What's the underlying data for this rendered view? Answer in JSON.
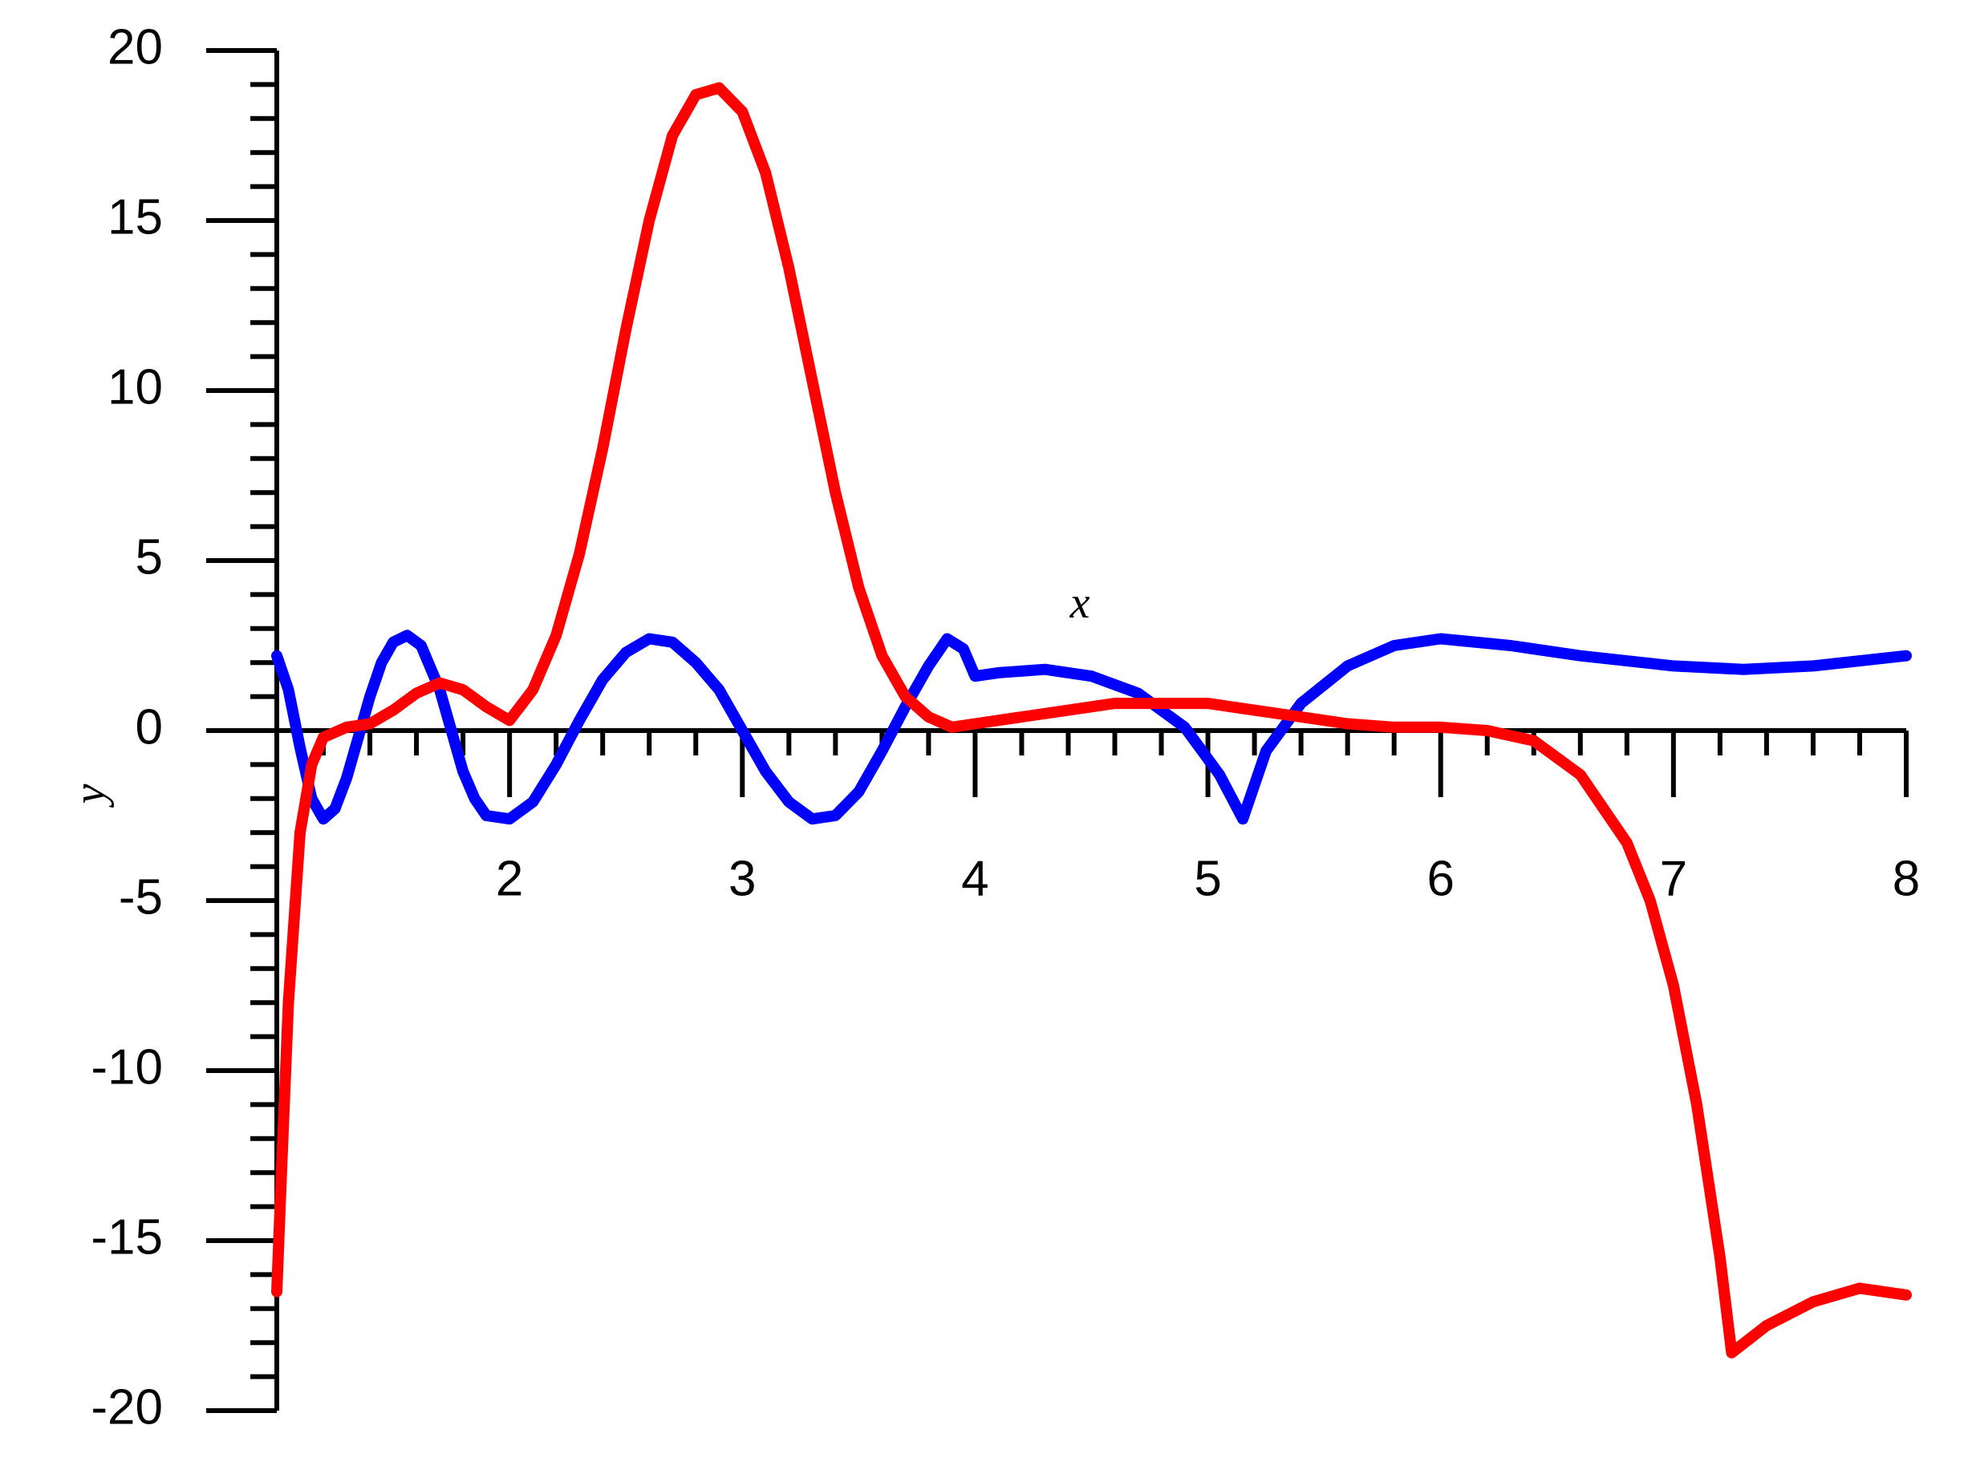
{
  "chart_data": {
    "type": "line",
    "x_label": "x",
    "y_label": "y",
    "xlim": [
      1,
      8
    ],
    "ylim": [
      -20,
      20
    ],
    "xticks": [
      2,
      3,
      4,
      5,
      6,
      7,
      8
    ],
    "yticks": [
      -20,
      -15,
      -10,
      -5,
      0,
      5,
      10,
      15,
      20
    ],
    "series": [
      {
        "color": "#0000ff",
        "x": [
          1.0,
          1.05,
          1.1,
          1.15,
          1.2,
          1.25,
          1.3,
          1.35,
          1.4,
          1.45,
          1.5,
          1.56,
          1.62,
          1.7,
          1.75,
          1.8,
          1.85,
          1.9,
          2.0,
          2.1,
          2.2,
          2.3,
          2.4,
          2.5,
          2.6,
          2.7,
          2.8,
          2.9,
          3.0,
          3.1,
          3.2,
          3.3,
          3.4,
          3.5,
          3.6,
          3.7,
          3.8,
          3.88,
          3.95,
          4.0,
          4.1,
          4.3,
          4.5,
          4.7,
          4.9,
          5.05,
          5.15,
          5.25,
          5.4,
          5.6,
          5.8,
          6.0,
          6.3,
          6.6,
          7.0,
          7.3,
          7.6,
          8.0
        ],
        "values": [
          2.2,
          1.2,
          -0.5,
          -2.0,
          -2.6,
          -2.3,
          -1.4,
          -0.2,
          1.0,
          2.0,
          2.6,
          2.8,
          2.5,
          1.2,
          0.0,
          -1.2,
          -2.0,
          -2.5,
          -2.6,
          -2.1,
          -1.0,
          0.3,
          1.5,
          2.3,
          2.7,
          2.6,
          2.0,
          1.2,
          0.0,
          -1.2,
          -2.1,
          -2.6,
          -2.5,
          -1.8,
          -0.6,
          0.7,
          1.9,
          2.7,
          2.4,
          1.6,
          1.7,
          1.8,
          1.6,
          1.1,
          0.1,
          -1.3,
          -2.6,
          -0.6,
          0.8,
          1.9,
          2.5,
          2.7,
          2.5,
          2.2,
          1.9,
          1.8,
          1.9,
          2.2
        ]
      },
      {
        "color": "#ff0000",
        "x": [
          1.0,
          1.02,
          1.05,
          1.08,
          1.1,
          1.15,
          1.2,
          1.3,
          1.4,
          1.5,
          1.6,
          1.7,
          1.8,
          1.9,
          2.0,
          2.1,
          2.2,
          2.3,
          2.4,
          2.5,
          2.6,
          2.7,
          2.8,
          2.9,
          3.0,
          3.1,
          3.2,
          3.3,
          3.4,
          3.5,
          3.6,
          3.7,
          3.8,
          3.9,
          4.0,
          4.2,
          4.4,
          4.6,
          4.8,
          5.0,
          5.2,
          5.4,
          5.6,
          5.8,
          6.0,
          6.2,
          6.4,
          6.6,
          6.8,
          6.9,
          7.0,
          7.1,
          7.2,
          7.25,
          7.4,
          7.6,
          7.8,
          8.0
        ],
        "values": [
          -16.5,
          -13,
          -8,
          -5,
          -3,
          -1,
          -0.2,
          0.1,
          0.2,
          0.6,
          1.1,
          1.4,
          1.2,
          0.7,
          0.3,
          1.2,
          2.8,
          5.2,
          8.3,
          11.8,
          15.0,
          17.5,
          18.7,
          18.9,
          18.2,
          16.4,
          13.6,
          10.3,
          7.0,
          4.2,
          2.2,
          1.0,
          0.4,
          0.1,
          0.2,
          0.4,
          0.6,
          0.8,
          0.8,
          0.8,
          0.6,
          0.4,
          0.2,
          0.1,
          0.1,
          0,
          -0.3,
          -1.3,
          -3.3,
          -5,
          -7.5,
          -11,
          -15.5,
          -18.3,
          -17.5,
          -16.8,
          -16.4,
          -16.6
        ]
      }
    ]
  }
}
